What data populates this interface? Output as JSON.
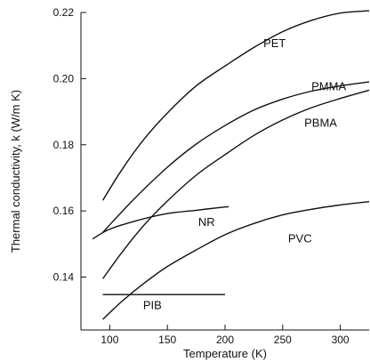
{
  "chart_data": {
    "type": "line",
    "xlabel": "Temperature (K)",
    "ylabel": "Thermal conductivity, k (W/m K)",
    "xlim": [
      75,
      325
    ],
    "ylim": [
      0.124,
      0.22
    ],
    "x_ticks": [
      100,
      150,
      200,
      250,
      300
    ],
    "y_ticks": [
      0.14,
      0.16,
      0.18,
      0.2,
      0.22
    ],
    "grid": false,
    "legend": "none",
    "colors": {
      "line": "#111111",
      "axis": "#111111",
      "background": "#ffffff"
    },
    "series": [
      {
        "name": "PET",
        "label_at": [
          243,
          0.2095
        ],
        "points": [
          [
            94,
            0.1632
          ],
          [
            110,
            0.1722
          ],
          [
            130,
            0.1818
          ],
          [
            150,
            0.1896
          ],
          [
            175,
            0.1978
          ],
          [
            200,
            0.2038
          ],
          [
            225,
            0.2094
          ],
          [
            250,
            0.2142
          ],
          [
            275,
            0.2176
          ],
          [
            300,
            0.2198
          ],
          [
            325,
            0.2205
          ]
        ]
      },
      {
        "name": "PMMA",
        "label_at": [
          290,
          0.1965
        ],
        "points": [
          [
            94,
            0.1535
          ],
          [
            120,
            0.1632
          ],
          [
            150,
            0.1732
          ],
          [
            175,
            0.1802
          ],
          [
            200,
            0.1858
          ],
          [
            225,
            0.1905
          ],
          [
            250,
            0.1938
          ],
          [
            275,
            0.1962
          ],
          [
            300,
            0.1978
          ],
          [
            325,
            0.199
          ]
        ]
      },
      {
        "name": "PBMA",
        "label_at": [
          283,
          0.1855
        ],
        "points": [
          [
            94,
            0.1395
          ],
          [
            110,
            0.1472
          ],
          [
            130,
            0.1558
          ],
          [
            150,
            0.163
          ],
          [
            175,
            0.1708
          ],
          [
            200,
            0.177
          ],
          [
            225,
            0.1828
          ],
          [
            250,
            0.1875
          ],
          [
            275,
            0.1912
          ],
          [
            300,
            0.194
          ],
          [
            325,
            0.1965
          ]
        ]
      },
      {
        "name": "NR",
        "label_at": [
          184,
          0.1555
        ],
        "points": [
          [
            85,
            0.1515
          ],
          [
            100,
            0.1545
          ],
          [
            125,
            0.1572
          ],
          [
            150,
            0.1592
          ],
          [
            175,
            0.1602
          ],
          [
            200,
            0.1612
          ],
          [
            203,
            0.1612
          ]
        ]
      },
      {
        "name": "PVC",
        "label_at": [
          265,
          0.1505
        ],
        "points": [
          [
            94,
            0.1272
          ],
          [
            110,
            0.1325
          ],
          [
            130,
            0.1382
          ],
          [
            150,
            0.1432
          ],
          [
            175,
            0.1482
          ],
          [
            200,
            0.1528
          ],
          [
            225,
            0.1562
          ],
          [
            250,
            0.1588
          ],
          [
            275,
            0.1605
          ],
          [
            300,
            0.1618
          ],
          [
            325,
            0.1628
          ]
        ]
      },
      {
        "name": "PIB",
        "label_at": [
          137,
          0.1303
        ],
        "points": [
          [
            94,
            0.1347
          ],
          [
            200,
            0.1347
          ]
        ]
      }
    ]
  }
}
